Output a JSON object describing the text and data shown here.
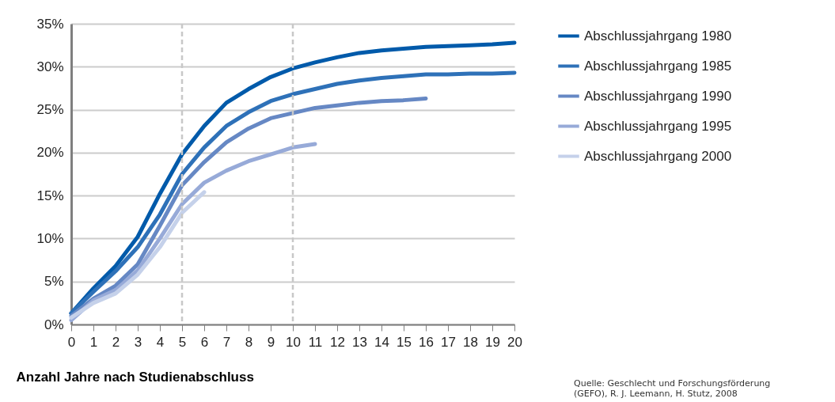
{
  "chart_data": {
    "type": "line",
    "xlabel": "Anzahl Jahre nach Studienabschluss",
    "annotations": [
      "Quelle: Geschlecht und Forschungsförderung\n(GEFO), R. J. Leemann, H. Stutz, 2008"
    ],
    "xlim": [
      0,
      20
    ],
    "xticks": [
      0,
      1,
      2,
      3,
      4,
      5,
      6,
      7,
      8,
      9,
      10,
      11,
      12,
      13,
      14,
      15,
      16,
      17,
      18,
      19,
      20
    ],
    "ylim": [
      0,
      35
    ],
    "yticks": [
      {
        "value": 0,
        "label": "0%"
      },
      {
        "value": 5,
        "label": "5%"
      },
      {
        "value": 10,
        "label": "10%"
      },
      {
        "value": 15,
        "label": "15%"
      },
      {
        "value": 20,
        "label": "20%"
      },
      {
        "value": 25,
        "label": "25%"
      },
      {
        "value": 30,
        "label": "30%"
      },
      {
        "value": 35,
        "label": "35%"
      }
    ],
    "grid": "y",
    "legend": "top right",
    "marker": "none",
    "line_style": "solid",
    "ref_lines": [
      {
        "axis": "x",
        "value": 5,
        "color": "#c8c8c8",
        "line_style": "dashed"
      },
      {
        "axis": "x",
        "value": 10,
        "color": "#c8c8c8",
        "line_style": "dashed"
      }
    ],
    "series": [
      {
        "name": "Abschlussjahrgang 1980",
        "color": "#005aaa",
        "x": [
          0,
          1,
          2,
          3,
          4,
          5,
          6,
          7,
          8,
          9,
          10,
          11,
          12,
          13,
          14,
          15,
          16,
          17,
          18,
          19,
          20
        ],
        "values": [
          1.3,
          4.2,
          6.8,
          10.2,
          15.2,
          19.8,
          23.1,
          25.8,
          27.4,
          28.8,
          29.8,
          30.5,
          31.1,
          31.6,
          31.9,
          32.1,
          32.3,
          32.4,
          32.5,
          32.6,
          32.8
        ]
      },
      {
        "name": "Abschlussjahrgang 1985",
        "color": "#2e71b8",
        "x": [
          0,
          1,
          2,
          3,
          4,
          5,
          6,
          7,
          8,
          9,
          10,
          11,
          12,
          13,
          14,
          15,
          16,
          17,
          18,
          19,
          20
        ],
        "values": [
          1.3,
          3.8,
          6.2,
          9.0,
          12.8,
          17.5,
          20.6,
          23.1,
          24.7,
          26.0,
          26.8,
          27.4,
          28.0,
          28.4,
          28.7,
          28.9,
          29.1,
          29.1,
          29.2,
          29.2,
          29.3
        ]
      },
      {
        "name": "Abschlussjahrgang 1990",
        "color": "#6688c4",
        "x": [
          0,
          1,
          2,
          3,
          4,
          5,
          6,
          7,
          8,
          9,
          10,
          11,
          12,
          13,
          14,
          15,
          16
        ],
        "values": [
          1.0,
          3.0,
          4.5,
          7.0,
          11.5,
          16.2,
          18.9,
          21.2,
          22.8,
          24.0,
          24.6,
          25.2,
          25.5,
          25.8,
          26.0,
          26.1,
          26.3
        ]
      },
      {
        "name": "Abschlussjahrgang 1995",
        "color": "#97aad8",
        "x": [
          0,
          1,
          2,
          3,
          4,
          5,
          6,
          7,
          8,
          9,
          10,
          11
        ],
        "values": [
          0.5,
          2.8,
          4.0,
          6.3,
          10.0,
          14.0,
          16.5,
          17.9,
          19.0,
          19.8,
          20.6,
          21.0
        ]
      },
      {
        "name": "Abschlussjahrgang 2000",
        "color": "#c5d1ea",
        "x": [
          0,
          1,
          2,
          3,
          4,
          5,
          6
        ],
        "values": [
          0.8,
          2.5,
          3.6,
          5.8,
          9.0,
          13.0,
          15.4
        ]
      }
    ]
  }
}
